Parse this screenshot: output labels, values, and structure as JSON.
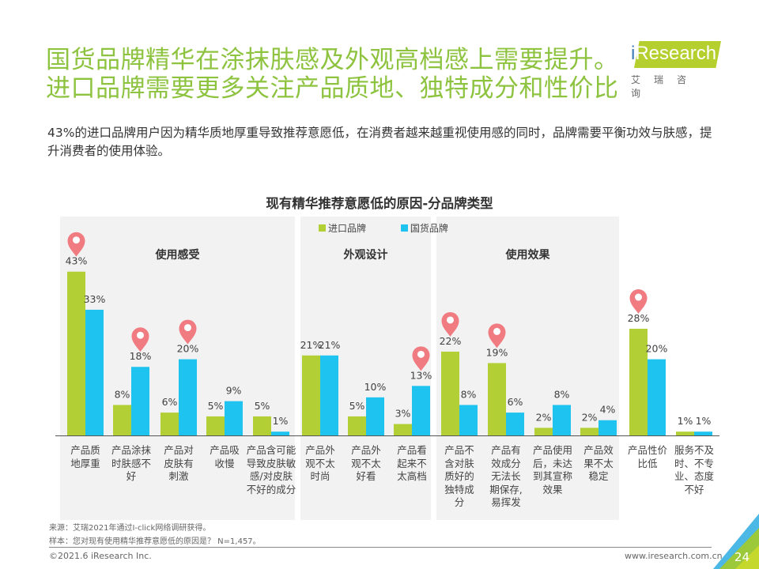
{
  "header": {
    "title_line1": "国货品牌精华在涂抹肤感及外观高档感上需要提升。",
    "title_line2": "进口品牌需要更多关注产品质地、独特成分和性价比",
    "logo_text": "Research",
    "logo_i": "i",
    "logo_cn": "艾瑞咨询"
  },
  "subtitle": "43%的进口品牌用户因为精华质地厚重导致推荐意愿低，在消费者越来越重视使用感的同时，品牌需要平衡功效与肤感，提升消费者的使用体验。",
  "chart_data": {
    "type": "bar",
    "title": "现有精华推荐意愿低的原因-分品牌类型",
    "legend_position": "top-center",
    "groups": [
      {
        "label": "使用感受",
        "categories": [
          0,
          1,
          2,
          3,
          4
        ]
      },
      {
        "label": "外观设计",
        "categories": [
          5,
          6,
          7
        ]
      },
      {
        "label": "使用效果",
        "categories": [
          8,
          9,
          10,
          11
        ]
      }
    ],
    "categories": [
      "产品质地厚重",
      "产品涂抹时肤感不好",
      "产品对皮肤有刺激",
      "产品吸收慢",
      "产品含可能导致皮肤敏感/对皮肤不好的成分",
      "产品外观不太时尚",
      "产品外观不太好看",
      "产品看起来不太高档",
      "产品不含对肤质好的独特成分",
      "产品有效成分无法长期保存，易挥发",
      "产品使用后，未达到其宣称效果",
      "产品效果不太稳定",
      "产品性价比低",
      "服务不及时、不专业、态度不好"
    ],
    "category_lines": [
      [
        "产品质",
        "地厚重"
      ],
      [
        "产品涂抹",
        "时肤感不",
        "好"
      ],
      [
        "产品对",
        "皮肤有",
        "刺激"
      ],
      [
        "产品吸",
        "收慢"
      ],
      [
        "产品含可能",
        "导致皮肤敏",
        "感/对皮肤",
        "不好的成分"
      ],
      [
        "产品外",
        "观不太",
        "时尚"
      ],
      [
        "产品外",
        "观不太",
        "好看"
      ],
      [
        "产品看",
        "起来不",
        "太高档"
      ],
      [
        "产品不",
        "含对肤",
        "质好的",
        "独特成",
        "分"
      ],
      [
        "产品有",
        "效成分",
        "无法长",
        "期保存,",
        "易挥发"
      ],
      [
        "产品使用",
        "后，未达",
        "到其宣称",
        "效果"
      ],
      [
        "产品效",
        "果不太",
        "稳定"
      ],
      [
        "产品性价",
        "比低"
      ],
      [
        "服务不及",
        "时、不专",
        "业、态度",
        "不好"
      ]
    ],
    "series": [
      {
        "name": "进口品牌",
        "color": "#b2cf35",
        "values": [
          43,
          8,
          6,
          5,
          5,
          21,
          5,
          3,
          22,
          19,
          2,
          2,
          28,
          1
        ]
      },
      {
        "name": "国货品牌",
        "color": "#1fc3ef",
        "values": [
          33,
          18,
          20,
          9,
          1,
          21,
          10,
          13,
          8,
          6,
          8,
          4,
          20,
          1
        ]
      }
    ],
    "highlight_markers": [
      {
        "category": 0,
        "series": 0
      },
      {
        "category": 1,
        "series": 1
      },
      {
        "category": 2,
        "series": 1
      },
      {
        "category": 7,
        "series": 1
      },
      {
        "category": 8,
        "series": 0
      },
      {
        "category": 9,
        "series": 0
      },
      {
        "category": 12,
        "series": 0
      }
    ],
    "marker_color": "#f07c82",
    "value_suffix": "%",
    "ylim": [
      0,
      45
    ]
  },
  "footer": {
    "source": "来源：艾瑞2021年通过I-click网络调研获得。",
    "sample": "样本：您对现有使用精华推荐意愿低的原因是？ N=1,457。",
    "copyright": "©2021.6 iResearch Inc.",
    "site": "www.iresearch.com.cn",
    "page": "24"
  }
}
